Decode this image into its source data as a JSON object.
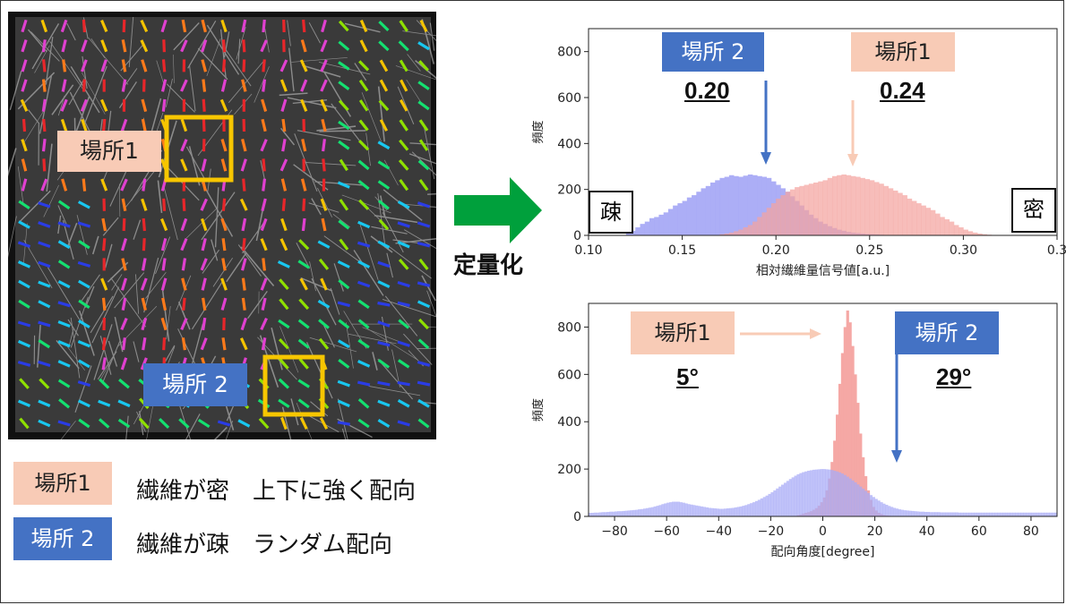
{
  "micro": {
    "place1_label": "場所1",
    "place2_label": "場所 2"
  },
  "legend": {
    "place1_label": "場所1",
    "place1_desc": "繊維が密　上下に強く配向",
    "place2_label": "場所 2",
    "place2_desc": "繊維が疎　ランダム配向"
  },
  "middle": {
    "quantify_label": "定量化"
  },
  "colors": {
    "pink": "#f4a6a0",
    "blue": "#9aa0f0",
    "overlap": "#9a5aa8",
    "arrow_green": "#00a03c",
    "box_pink": "#f8cbb6",
    "box_blue": "#4472c4"
  },
  "chart_data": [
    {
      "type": "histogram",
      "xlabel": "相対繊維量信号値[a.u.]",
      "ylabel": "頻度",
      "xlim": [
        0.1,
        0.35
      ],
      "ylim": [
        0,
        900
      ],
      "xticks": [
        "0.10",
        "0.15",
        "0.20",
        "0.25",
        "0.30",
        "0.3"
      ],
      "yticks": [
        "0",
        "200",
        "400",
        "600",
        "800"
      ],
      "corner_left": "疎",
      "corner_right": "密",
      "annotations": [
        {
          "label": "場所 2",
          "value": "0.20",
          "x": 0.2
        },
        {
          "label": "場所1",
          "value": "0.24",
          "x": 0.243
        }
      ],
      "series": [
        {
          "name": "場所 2",
          "bins_start": 0.12,
          "bin_width": 0.0025,
          "values": [
            10,
            20,
            35,
            50,
            60,
            75,
            80,
            90,
            100,
            115,
            130,
            140,
            150,
            165,
            175,
            190,
            205,
            215,
            230,
            240,
            250,
            255,
            262,
            258,
            255,
            260,
            265,
            262,
            258,
            255,
            250,
            235,
            220,
            205,
            190,
            170,
            150,
            130,
            110,
            90,
            75,
            60,
            50,
            40,
            32,
            25,
            20,
            15,
            12,
            10,
            8,
            6,
            5,
            4,
            3,
            2,
            2,
            1,
            1,
            1,
            0,
            0,
            0,
            0,
            0,
            0,
            0,
            0,
            0,
            0,
            0,
            0
          ]
        },
        {
          "name": "場所1",
          "bins_start": 0.17,
          "bin_width": 0.0025,
          "values": [
            5,
            8,
            12,
            18,
            25,
            35,
            45,
            60,
            80,
            100,
            120,
            140,
            160,
            175,
            190,
            200,
            210,
            215,
            220,
            225,
            230,
            235,
            240,
            250,
            258,
            262,
            265,
            262,
            258,
            255,
            250,
            245,
            240,
            232,
            225,
            215,
            205,
            195,
            185,
            175,
            160,
            150,
            140,
            130,
            120,
            110,
            95,
            80,
            70,
            60,
            45,
            35,
            25,
            18,
            12,
            8,
            5,
            3,
            2,
            1
          ]
        }
      ]
    },
    {
      "type": "histogram",
      "xlabel": "配向角度[degree]",
      "ylabel": "頻度",
      "xlim": [
        -90,
        90
      ],
      "ylim": [
        0,
        900
      ],
      "xticks": [
        "−80",
        "−60",
        "−40",
        "−20",
        "0",
        "20",
        "40",
        "60",
        "80"
      ],
      "yticks": [
        "0",
        "200",
        "400",
        "600",
        "800"
      ],
      "annotations": [
        {
          "label": "場所1",
          "value": "5°",
          "x": 5
        },
        {
          "label": "場所 2",
          "value": "29°",
          "x": 29
        }
      ],
      "series": [
        {
          "name": "場所1",
          "bins_start": -10,
          "bin_width": 1,
          "values": [
            5,
            8,
            12,
            15,
            18,
            22,
            28,
            35,
            45,
            60,
            80,
            110,
            160,
            230,
            320,
            430,
            560,
            690,
            800,
            870,
            820,
            720,
            600,
            480,
            350,
            250,
            170,
            110,
            70,
            40,
            25,
            15,
            10,
            6,
            4,
            3,
            2,
            1,
            1,
            0
          ]
        },
        {
          "name": "場所 2",
          "bins_start": -90,
          "bin_width": 1,
          "values": [
            15,
            15,
            16,
            16,
            17,
            18,
            18,
            19,
            20,
            20,
            21,
            22,
            22,
            23,
            24,
            25,
            26,
            27,
            28,
            30,
            31,
            33,
            35,
            37,
            39,
            42,
            45,
            48,
            52,
            55,
            58,
            60,
            62,
            62,
            62,
            60,
            58,
            55,
            52,
            50,
            48,
            46,
            44,
            42,
            40,
            38,
            36,
            35,
            34,
            33,
            32,
            32,
            33,
            34,
            35,
            36,
            38,
            40,
            42,
            45,
            48,
            52,
            56,
            60,
            65,
            70,
            76,
            82,
            88,
            95,
            102,
            110,
            118,
            126,
            134,
            142,
            150,
            158,
            165,
            172,
            178,
            183,
            187,
            190,
            193,
            195,
            197,
            198,
            199,
            200,
            200,
            199,
            198,
            196,
            193,
            190,
            186,
            181,
            175,
            168,
            160,
            152,
            144,
            135,
            126,
            117,
            108,
            99,
            90,
            82,
            74,
            67,
            60,
            54,
            49,
            44,
            40,
            36,
            33,
            30,
            28,
            26,
            25,
            24,
            23,
            22,
            21,
            20,
            20,
            19,
            19,
            18,
            18,
            18,
            18,
            17,
            17,
            17,
            17,
            17,
            17,
            17,
            16,
            16,
            16,
            16,
            16,
            16,
            16,
            16,
            16,
            16,
            16,
            16,
            16,
            16,
            16,
            16,
            16,
            16,
            16,
            16,
            16,
            16,
            16,
            16,
            16,
            16,
            16,
            16,
            16,
            16,
            16,
            16,
            16,
            16,
            16,
            16,
            16,
            16
          ]
        }
      ]
    }
  ]
}
